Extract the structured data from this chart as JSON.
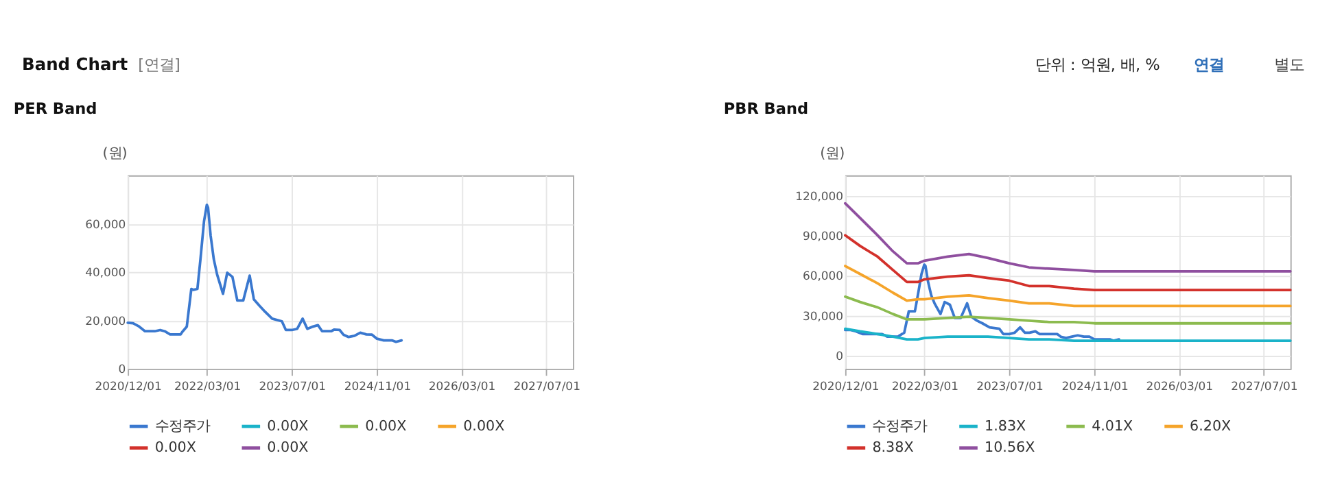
{
  "chart_data": [
    {
      "type": "other",
      "title": "Band Chart",
      "annotations": [
        "[연결]",
        "단위 : 억원, 배, %",
        "연결",
        "별도"
      ]
    },
    {
      "type": "line",
      "title": "PER Band",
      "ylabel": "(원)",
      "xlim": [
        "2020-12-01",
        "2027-12-01"
      ],
      "ylim": [
        0,
        80000
      ],
      "yticks": [
        0,
        {
          "value": 20000,
          "label": "20,000"
        },
        {
          "value": 40000,
          "label": "40,000"
        },
        {
          "value": 60000,
          "label": "60,000"
        }
      ],
      "xticks": [
        {
          "value": "2020-12-01",
          "label": "2020/12/01"
        },
        {
          "value": "2022-03-01",
          "label": "2022/03/01"
        },
        {
          "value": "2023-07-01",
          "label": "2023/07/01"
        },
        {
          "value": "2024-11-01",
          "label": "2024/11/01"
        },
        {
          "value": "2026-03-01",
          "label": "2026/03/01"
        },
        {
          "value": "2027-07-01",
          "label": "2027/07/01"
        }
      ],
      "grid": true,
      "legend": "bottom",
      "series": [
        {
          "name": "수정주가",
          "color": "#3a78cf",
          "x": [
            "2020-12-01",
            "2021-01-01",
            "2021-02-01",
            "2021-03-10",
            "2021-05-05",
            "2021-06-05",
            "2021-07-01",
            "2021-08-01",
            "2021-10-01",
            "2021-10-10",
            "2021-11-05",
            "2021-12-01",
            "2021-12-12",
            "2022-01-05",
            "2022-01-22",
            "2022-02-12",
            "2022-02-28",
            "2022-03-07",
            "2022-03-22",
            "2022-04-09",
            "2022-04-28",
            "2022-06-01",
            "2022-06-25",
            "2022-07-25",
            "2022-08-22",
            "2022-09-25",
            "2022-11-01",
            "2022-11-25",
            "2022-12-28",
            "2023-01-28",
            "2023-03-10",
            "2023-05-05",
            "2023-05-28",
            "2023-07-01",
            "2023-08-01",
            "2023-09-01",
            "2023-09-28",
            "2023-10-25",
            "2023-11-28",
            "2023-12-22",
            "2024-02-12",
            "2024-03-01",
            "2024-04-01",
            "2024-04-22",
            "2024-05-22",
            "2024-06-25",
            "2024-07-28",
            "2024-09-01",
            "2024-10-03",
            "2024-11-01",
            "2024-12-10",
            "2025-01-28",
            "2025-02-18",
            "2025-03-22"
          ],
          "values": [
            19000,
            18800,
            17600,
            15500,
            15500,
            16000,
            15500,
            14200,
            14200,
            15200,
            17400,
            33000,
            32600,
            33000,
            45000,
            61000,
            67800,
            66700,
            55000,
            45300,
            39000,
            31000,
            39700,
            38000,
            28200,
            28200,
            38500,
            28700,
            26000,
            23600,
            20700,
            19600,
            16000,
            16000,
            16500,
            20700,
            16500,
            17300,
            18000,
            15500,
            15500,
            16200,
            16000,
            14100,
            13100,
            13600,
            14900,
            14200,
            14100,
            12400,
            11700,
            11700,
            11100,
            11700
          ]
        },
        {
          "name": "0.00X",
          "color": "#1ab3c9"
        },
        {
          "name": "0.00X",
          "color": "#8cbb4f"
        },
        {
          "name": "0.00X",
          "color": "#f5a42a"
        },
        {
          "name": "0.00X",
          "color": "#d3312b"
        },
        {
          "name": "0.00X",
          "color": "#8f4f9f"
        }
      ]
    },
    {
      "type": "line",
      "title": "PBR Band",
      "ylabel": "(원)",
      "xlim": [
        "2020-12-01",
        "2027-12-01"
      ],
      "ylim": [
        -10000,
        135000
      ],
      "yticks": [
        0,
        {
          "value": 30000,
          "label": "30,000"
        },
        {
          "value": 60000,
          "label": "60,000"
        },
        {
          "value": 90000,
          "label": "90,000"
        },
        {
          "value": 120000,
          "label": "120,000"
        }
      ],
      "xticks": [
        {
          "value": "2020-12-01",
          "label": "2020/12/01"
        },
        {
          "value": "2022-03-01",
          "label": "2022/03/01"
        },
        {
          "value": "2023-07-01",
          "label": "2023/07/01"
        },
        {
          "value": "2024-11-01",
          "label": "2024/11/01"
        },
        {
          "value": "2026-03-01",
          "label": "2026/03/01"
        },
        {
          "value": "2027-07-01",
          "label": "2027/07/01"
        }
      ],
      "grid": true,
      "legend": "bottom",
      "x": [
        "2020-12-01",
        "2021-02-25",
        "2021-06-05",
        "2021-09-01",
        "2021-11-20",
        "2022-01-22",
        "2022-03-01",
        "2022-07-12",
        "2022-11-12",
        "2023-03-01",
        "2023-07-01",
        "2023-10-22",
        "2024-02-15",
        "2024-07-07",
        "2024-11-01",
        "2027-12-01"
      ],
      "series": [
        {
          "name": "수정주가",
          "color": "#3a78cf",
          "x": [
            "2020-12-01",
            "2021-01-01",
            "2021-02-01",
            "2021-03-10",
            "2021-05-05",
            "2021-06-05",
            "2021-07-01",
            "2021-08-01",
            "2021-10-01",
            "2021-10-10",
            "2021-11-05",
            "2021-12-01",
            "2021-12-12",
            "2022-01-05",
            "2022-01-22",
            "2022-02-12",
            "2022-02-28",
            "2022-03-07",
            "2022-03-22",
            "2022-04-09",
            "2022-04-28",
            "2022-06-01",
            "2022-06-25",
            "2022-07-25",
            "2022-08-22",
            "2022-09-25",
            "2022-11-01",
            "2022-11-25",
            "2022-12-28",
            "2023-01-28",
            "2023-03-10",
            "2023-05-05",
            "2023-05-28",
            "2023-07-01",
            "2023-08-01",
            "2023-09-01",
            "2023-09-28",
            "2023-10-25",
            "2023-11-28",
            "2023-12-22",
            "2024-02-12",
            "2024-03-01",
            "2024-04-01",
            "2024-04-22",
            "2024-05-22",
            "2024-06-25",
            "2024-07-28",
            "2024-09-01",
            "2024-10-03",
            "2024-11-01",
            "2024-12-10",
            "2025-01-28",
            "2025-02-18",
            "2025-03-22"
          ],
          "values": [
            19000,
            19000,
            18000,
            16000,
            16000,
            16000,
            16000,
            14000,
            14000,
            15000,
            17000,
            33000,
            33000,
            33000,
            45000,
            61000,
            68000,
            67000,
            55000,
            45000,
            39000,
            31000,
            40000,
            38000,
            28000,
            28000,
            39000,
            29000,
            26000,
            24000,
            21000,
            20000,
            16000,
            16000,
            17000,
            21000,
            17000,
            17000,
            18000,
            16000,
            16000,
            16000,
            16000,
            14000,
            13000,
            14000,
            15000,
            14000,
            14000,
            12000,
            12000,
            12000,
            11000,
            12000
          ]
        },
        {
          "name": "1.83X",
          "color": "#1ab3c9",
          "values": [
            20000,
            18000,
            16000,
            14000,
            12000,
            12000,
            13000,
            14000,
            14000,
            14000,
            13000,
            12000,
            12000,
            11000,
            11000,
            11000
          ]
        },
        {
          "name": "4.01X",
          "color": "#8cbb4f",
          "values": [
            44000,
            40000,
            36000,
            31000,
            27000,
            27000,
            27000,
            28000,
            29000,
            28000,
            27000,
            26000,
            25000,
            25000,
            24000,
            24000
          ]
        },
        {
          "name": "6.20X",
          "color": "#f5a42a",
          "values": [
            67000,
            61000,
            54000,
            47000,
            41000,
            42000,
            42000,
            44000,
            45000,
            43000,
            41000,
            39000,
            39000,
            37000,
            37000,
            37000
          ]
        },
        {
          "name": "8.38X",
          "color": "#d3312b",
          "values": [
            90000,
            82000,
            74000,
            64000,
            55000,
            55000,
            57000,
            59000,
            60000,
            58000,
            56000,
            52000,
            52000,
            50000,
            49000,
            49000
          ]
        },
        {
          "name": "10.56X",
          "color": "#8f4f9f",
          "values": [
            114000,
            103000,
            90000,
            78000,
            69000,
            69000,
            71000,
            74000,
            76000,
            73000,
            69000,
            66000,
            65000,
            64000,
            63000,
            63000
          ]
        }
      ]
    }
  ]
}
